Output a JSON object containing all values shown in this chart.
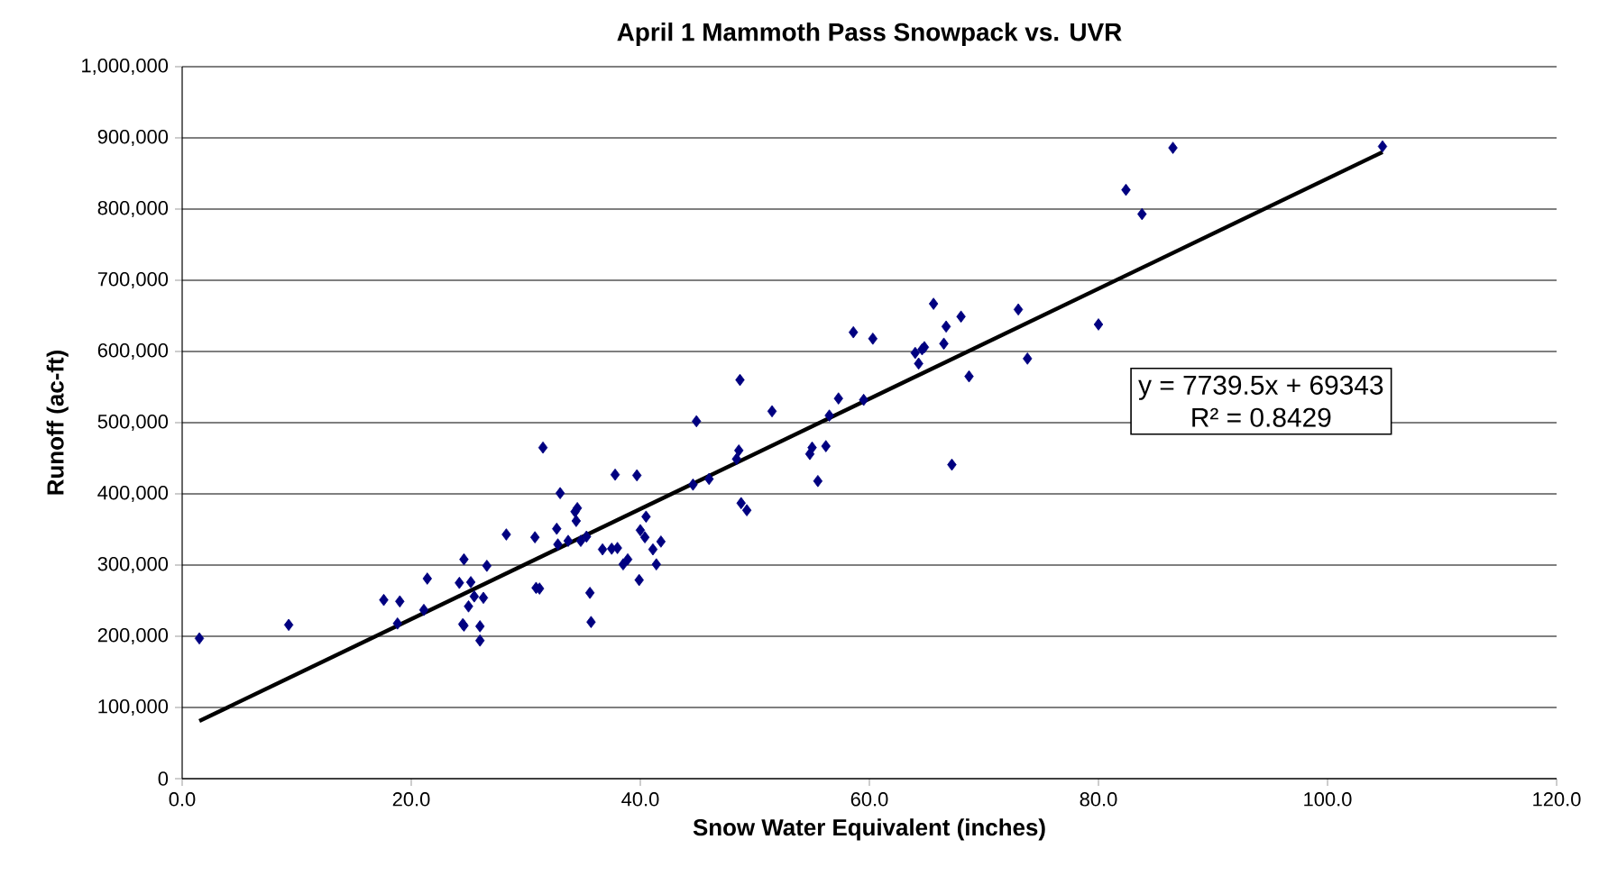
{
  "chart_data": {
    "type": "scatter",
    "title": "April 1 Mammoth Pass Snowpack vs. UVR",
    "xlabel": "Snow Water Equivalent (inches)",
    "ylabel": "Runoff (ac-ft)",
    "xlim": [
      0,
      120
    ],
    "ylim": [
      0,
      1000000
    ],
    "xticks": [
      {
        "value": 0,
        "label": "0.0"
      },
      {
        "value": 20,
        "label": "20.0"
      },
      {
        "value": 40,
        "label": "40.0"
      },
      {
        "value": 60,
        "label": "60.0"
      },
      {
        "value": 80,
        "label": "80.0"
      },
      {
        "value": 100,
        "label": "100.0"
      },
      {
        "value": 120,
        "label": "120.0"
      }
    ],
    "yticks": [
      0,
      {
        "value": 100000,
        "label": "100,000"
      },
      {
        "value": 200000,
        "label": "200,000"
      },
      {
        "value": 300000,
        "label": "300,000"
      },
      {
        "value": 400000,
        "label": "400,000"
      },
      {
        "value": 500000,
        "label": "500,000"
      },
      {
        "value": 600000,
        "label": "600,000"
      },
      {
        "value": 700000,
        "label": "700,000"
      },
      {
        "value": 800000,
        "label": "800,000"
      },
      {
        "value": 900000,
        "label": "900,000"
      },
      {
        "value": 1000000,
        "label": "1,000,000"
      }
    ],
    "grid": "y",
    "marker": "diamond",
    "annotations": [
      "y = 7739.5x + 69343",
      "R² = 0.8429"
    ],
    "series": [
      {
        "color": "#000080",
        "x": [
          1.5,
          9.3,
          17.6,
          18.8,
          19.0,
          21.1,
          21.4,
          24.2,
          24.5,
          24.6,
          24.6,
          25.0,
          25.2,
          25.5,
          26.0,
          26.0,
          26.3,
          26.6,
          28.3,
          30.8,
          30.9,
          31.2,
          31.5,
          32.7,
          32.8,
          33.0,
          33.7,
          34.3,
          34.4,
          34.5,
          34.8,
          35.3,
          35.6,
          35.7,
          36.7,
          37.5,
          37.8,
          38.0,
          38.5,
          38.9,
          39.7,
          39.9,
          40.0,
          40.4,
          40.5,
          41.1,
          41.4,
          41.8,
          44.6,
          44.9,
          46.0,
          48.4,
          48.6,
          48.7,
          48.8,
          49.3,
          51.5,
          54.8,
          55.0,
          55.5,
          56.2,
          56.5,
          57.3,
          58.6,
          59.5,
          60.3,
          64.0,
          64.3,
          64.6,
          64.8,
          65.6,
          66.5,
          66.7,
          67.2,
          68.0,
          68.7,
          73.0,
          73.8,
          80.0,
          82.4,
          83.8,
          86.5,
          104.8
        ],
        "values": [
          197000,
          216000,
          251000,
          218000,
          249000,
          237000,
          281000,
          275000,
          217000,
          215000,
          308000,
          242000,
          276000,
          256000,
          194000,
          214000,
          254000,
          299000,
          343000,
          339000,
          268000,
          267000,
          465000,
          351000,
          329000,
          401000,
          334000,
          375000,
          362000,
          380000,
          334000,
          340000,
          261000,
          220000,
          322000,
          323000,
          427000,
          324000,
          301000,
          308000,
          426000,
          279000,
          349000,
          339000,
          368000,
          322000,
          301000,
          333000,
          413000,
          502000,
          421000,
          449000,
          461000,
          560000,
          387000,
          377000,
          516000,
          456000,
          465000,
          418000,
          467000,
          510000,
          534000,
          627000,
          532000,
          618000,
          598000,
          583000,
          603000,
          606000,
          667000,
          611000,
          635000,
          441000,
          649000,
          565000,
          659000,
          590000,
          638000,
          827000,
          793000,
          886000,
          888000
        ]
      },
      {
        "type": "line",
        "color": "#000000",
        "marker": "none",
        "x": [
          1.5,
          104.8
        ],
        "values": [
          81000,
          880000
        ]
      }
    ]
  }
}
